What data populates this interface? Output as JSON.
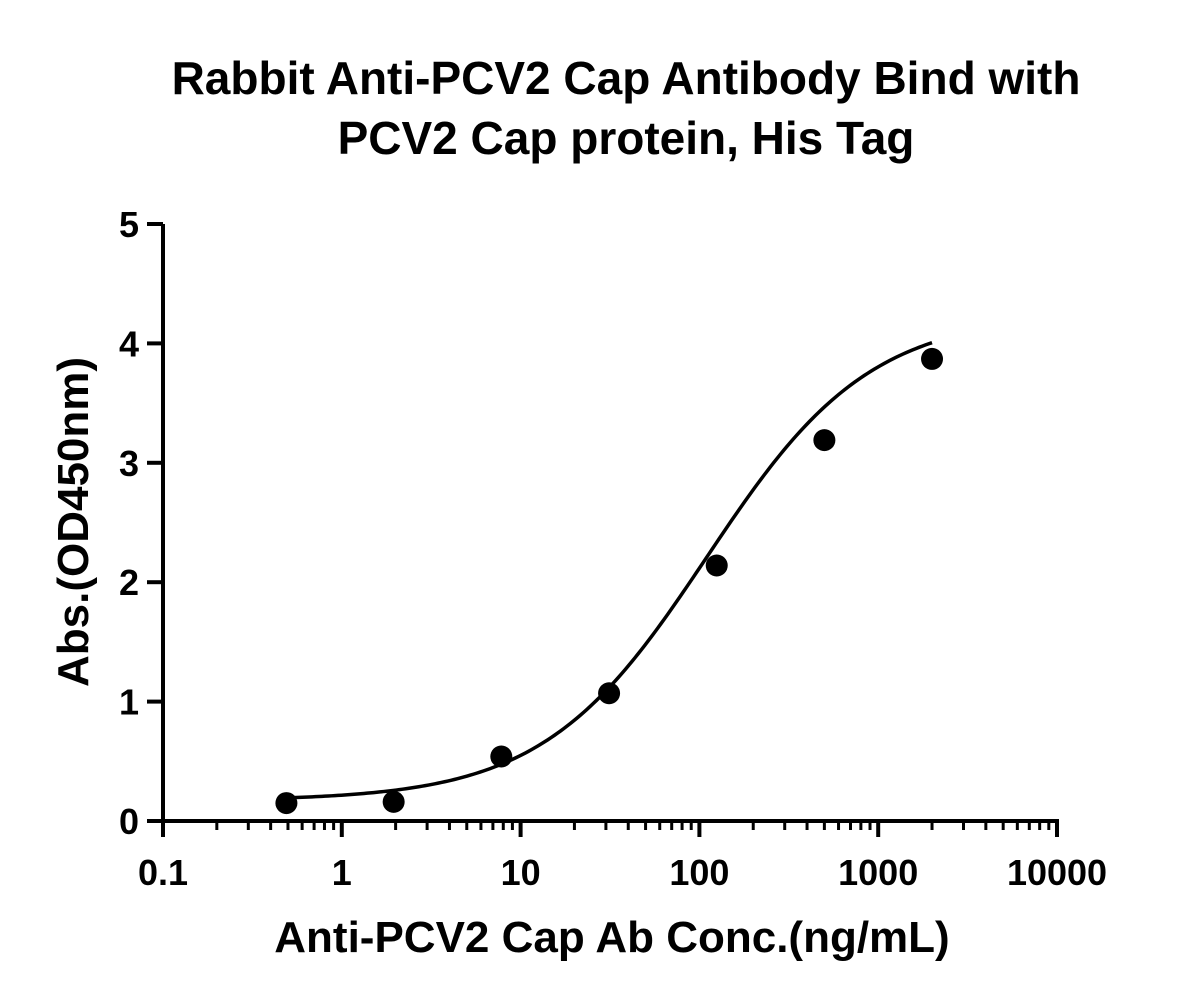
{
  "chart_data": {
    "type": "scatter",
    "title": [
      "Rabbit Anti-PCV2 Cap Antibody Bind with",
      "PCV2 Cap protein, His Tag"
    ],
    "xlabel": "Anti-PCV2 Cap Ab Conc.(ng/mL)",
    "ylabel": "Abs.(OD450nm)",
    "x_scale": "log",
    "xlim": [
      0.1,
      10000
    ],
    "ylim": [
      0,
      5
    ],
    "x_ticks": [
      "0.1",
      "1",
      "10",
      "100",
      "1000",
      "10000"
    ],
    "y_ticks": [
      "0",
      "1",
      "2",
      "3",
      "4",
      "5"
    ],
    "grid": false,
    "series": [
      {
        "x": [
          0.49,
          1.95,
          7.8,
          31.25,
          125,
          500,
          2000
        ],
        "y": [
          0.15,
          0.16,
          0.54,
          1.07,
          2.14,
          3.19,
          3.87
        ],
        "marker": "circle",
        "color": "#000000",
        "fit_curve": "4PL"
      }
    ]
  }
}
